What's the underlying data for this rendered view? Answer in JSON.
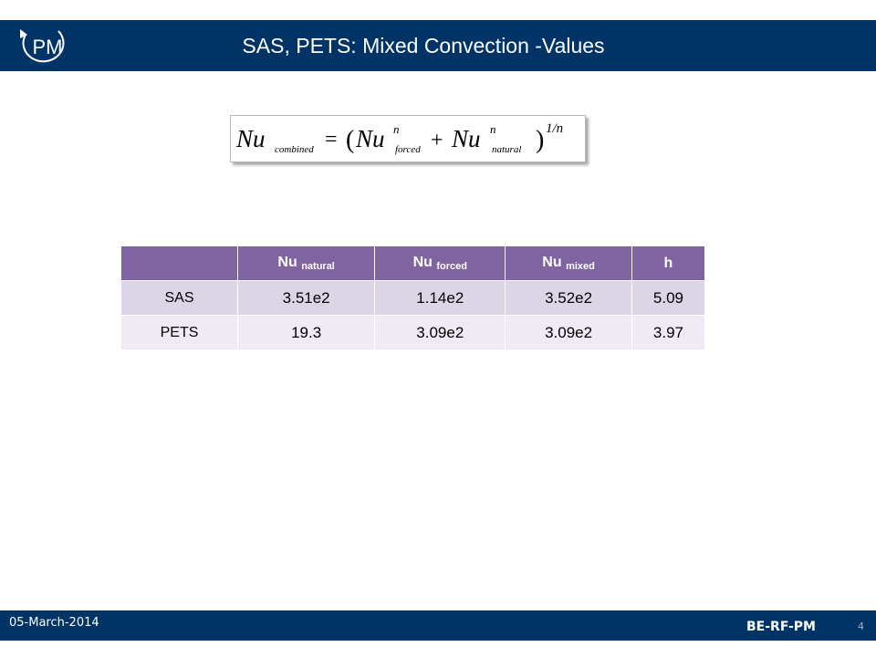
{
  "slide": {
    "title": "SAS, PETS: Mixed Convection -Values",
    "logo_text": "PM",
    "brand_color": "#003366",
    "table_header_color": "#8064a2"
  },
  "formula": {
    "lhs_main": "Nu",
    "lhs_sub": "combined",
    "eq": "=",
    "open": "(",
    "nu1": "Nu",
    "exp1": "n",
    "sub1": "forced",
    "plus": "+",
    "nu2": "Nu",
    "exp2": "n",
    "sub2": "natural",
    "close": ")",
    "outer_exp": "1/n"
  },
  "table": {
    "headers": [
      {
        "main": "",
        "sub": ""
      },
      {
        "main": "Nu",
        "sub": "natural"
      },
      {
        "main": "Nu",
        "sub": "forced"
      },
      {
        "main": "Nu",
        "sub": "mixed"
      },
      {
        "main": "h",
        "sub": ""
      }
    ],
    "rows": [
      [
        "SAS",
        "3.51e2",
        "1.14e2",
        "3.52e2",
        "5.09"
      ],
      [
        "PETS",
        "19.3",
        "3.09e2",
        "3.09e2",
        "3.97"
      ]
    ]
  },
  "footer": {
    "date": "05-March-2014",
    "org": "BE-RF-PM",
    "page": "4"
  }
}
